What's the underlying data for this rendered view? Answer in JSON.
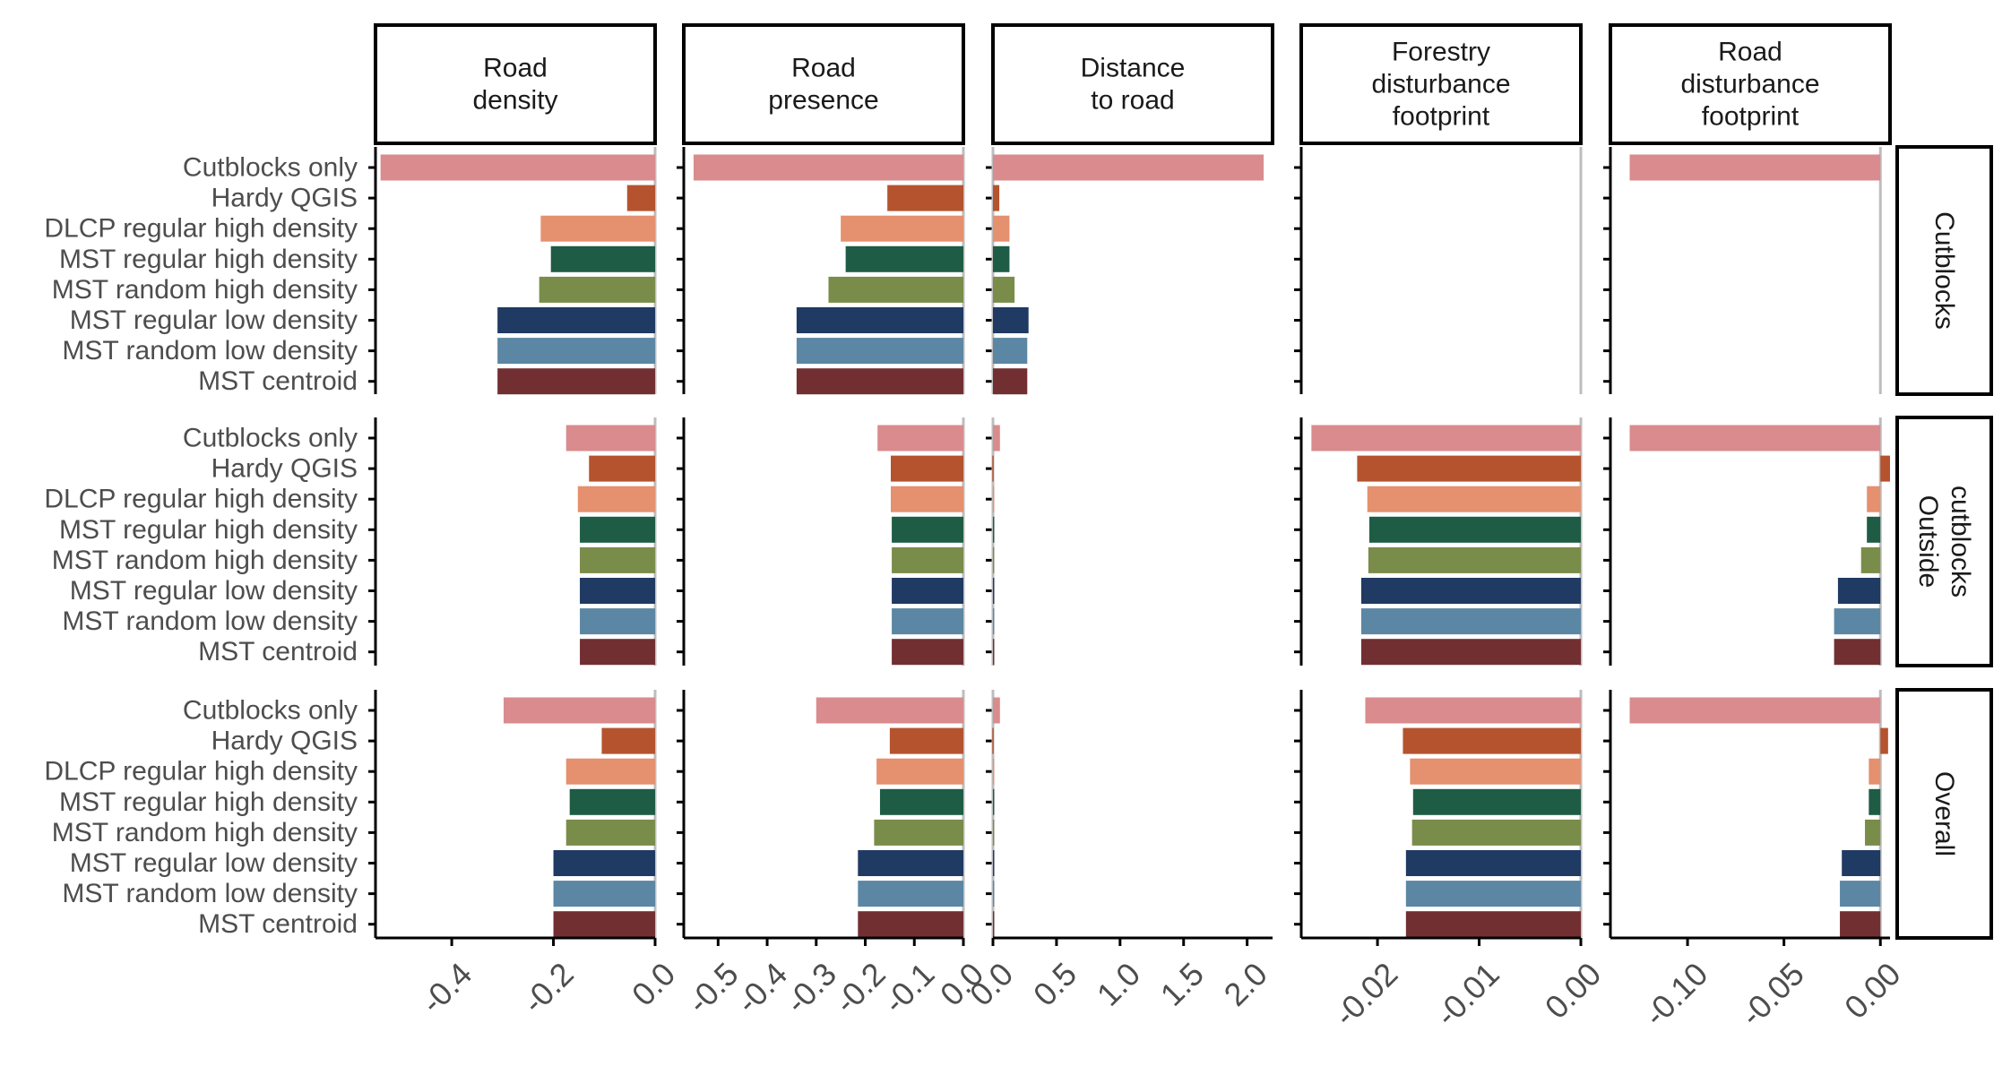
{
  "chart_data": {
    "type": "bar",
    "orientation": "horizontal",
    "facet_columns": [
      {
        "label": [
          "Road",
          "density"
        ],
        "xlim": [
          -0.55,
          0.0
        ],
        "ticks": [
          -0.4,
          -0.2,
          0.0
        ],
        "tick_labels": [
          "-0.4",
          "-0.2",
          "0.0"
        ]
      },
      {
        "label": [
          "Road",
          "presence"
        ],
        "xlim": [
          -0.57,
          0.0
        ],
        "ticks": [
          -0.5,
          -0.4,
          -0.3,
          -0.2,
          -0.1,
          0.0
        ],
        "tick_labels": [
          "-0.5",
          "-0.4",
          "-0.3",
          "-0.2",
          "-0.1",
          "0.0"
        ]
      },
      {
        "label": [
          "Distance",
          "to road"
        ],
        "xlim": [
          0.0,
          2.2
        ],
        "ticks": [
          0.0,
          0.5,
          1.0,
          1.5,
          2.0
        ],
        "tick_labels": [
          "0.0",
          "0.5",
          "1.0",
          "1.5",
          "2.0"
        ]
      },
      {
        "label": [
          "Forestry",
          "disturbance",
          "footprint"
        ],
        "xlim": [
          -0.0275,
          0.0
        ],
        "ticks": [
          -0.02,
          -0.01,
          0.0
        ],
        "tick_labels": [
          "-0.02",
          "-0.01",
          "0.00"
        ]
      },
      {
        "label": [
          "Road",
          "disturbance",
          "footprint"
        ],
        "xlim": [
          -0.14,
          0.005
        ],
        "ticks": [
          -0.1,
          -0.05,
          0.0
        ],
        "tick_labels": [
          "-0.10",
          "-0.05",
          "0.00"
        ]
      }
    ],
    "facet_rows": [
      {
        "label": [
          "Cutblocks"
        ]
      },
      {
        "label": [
          "Outside",
          "cutblocks"
        ]
      },
      {
        "label": [
          "Overall"
        ]
      }
    ],
    "categories": [
      "Cutblocks only",
      "Hardy QGIS",
      "DLCP regular high density",
      "MST regular high density",
      "MST random high density",
      "MST regular low density",
      "MST random low density",
      "MST centroid"
    ],
    "colors": [
      "#d98b8e",
      "#b5532f",
      "#e5906e",
      "#1f5c45",
      "#7a8c4a",
      "#1f3a63",
      "#5b87a4",
      "#722f32"
    ],
    "values": [
      [
        [
          -0.54,
          -0.055,
          -0.225,
          -0.205,
          -0.228,
          -0.31,
          -0.31,
          -0.31
        ],
        [
          -0.55,
          -0.155,
          -0.25,
          -0.24,
          -0.275,
          -0.34,
          -0.34,
          -0.34
        ],
        [
          2.13,
          0.05,
          0.13,
          0.13,
          0.17,
          0.28,
          0.27,
          0.27
        ],
        [
          null,
          null,
          null,
          null,
          null,
          null,
          null,
          null
        ],
        [
          -0.13,
          null,
          null,
          null,
          null,
          null,
          null,
          null
        ]
      ],
      [
        [
          -0.175,
          -0.13,
          -0.152,
          -0.148,
          -0.148,
          -0.148,
          -0.148,
          -0.148
        ],
        [
          -0.175,
          -0.148,
          -0.148,
          -0.146,
          -0.146,
          -0.146,
          -0.146,
          -0.146
        ],
        [
          0.055,
          -0.005,
          0.005,
          0.005,
          0.005,
          0.01,
          0.01,
          0.01
        ],
        [
          -0.0265,
          -0.022,
          -0.021,
          -0.0208,
          -0.0209,
          -0.0216,
          -0.0216,
          -0.0216
        ],
        [
          -0.13,
          0.005,
          -0.007,
          -0.007,
          -0.01,
          -0.022,
          -0.024,
          -0.024
        ]
      ],
      [
        [
          -0.298,
          -0.105,
          -0.175,
          -0.168,
          -0.175,
          -0.2,
          -0.2,
          -0.2
        ],
        [
          -0.3,
          -0.15,
          -0.177,
          -0.17,
          -0.182,
          -0.215,
          -0.215,
          -0.215
        ],
        [
          0.055,
          -0.005,
          0.005,
          0.005,
          0.005,
          0.01,
          0.01,
          0.01
        ],
        [
          -0.0212,
          -0.0175,
          -0.0168,
          -0.0165,
          -0.0166,
          -0.0172,
          -0.0172,
          -0.0172
        ],
        [
          -0.13,
          0.004,
          -0.006,
          -0.006,
          -0.008,
          -0.02,
          -0.021,
          -0.021
        ]
      ]
    ],
    "grid": false,
    "legend": "none"
  }
}
